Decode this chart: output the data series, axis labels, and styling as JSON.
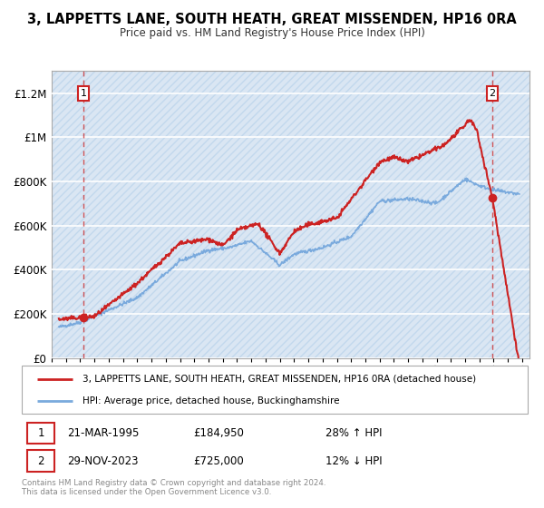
{
  "title": "3, LAPPETTS LANE, SOUTH HEATH, GREAT MISSENDEN, HP16 0RA",
  "subtitle": "Price paid vs. HM Land Registry's House Price Index (HPI)",
  "ylim": [
    0,
    1300000
  ],
  "xlim_start": 1993.0,
  "xlim_end": 2026.5,
  "yticks": [
    0,
    200000,
    400000,
    600000,
    800000,
    1000000,
    1200000
  ],
  "ytick_labels": [
    "£0",
    "£200K",
    "£400K",
    "£600K",
    "£800K",
    "£1M",
    "£1.2M"
  ],
  "bg_color": "#dae6f3",
  "hatch_color": "#c2d8ed",
  "line1_color": "#cc2222",
  "line2_color": "#7aaadd",
  "point1_x": 1995.22,
  "point1_y": 184950,
  "point2_x": 2023.91,
  "point2_y": 725000,
  "label1": "3, LAPPETTS LANE, SOUTH HEATH, GREAT MISSENDEN, HP16 0RA (detached house)",
  "label2": "HPI: Average price, detached house, Buckinghamshire",
  "footnote1_date": "21-MAR-1995",
  "footnote1_price": "£184,950",
  "footnote1_hpi": "28% ↑ HPI",
  "footnote2_date": "29-NOV-2023",
  "footnote2_price": "£725,000",
  "footnote2_hpi": "12% ↓ HPI",
  "copyright": "Contains HM Land Registry data © Crown copyright and database right 2024.\nThis data is licensed under the Open Government Licence v3.0."
}
